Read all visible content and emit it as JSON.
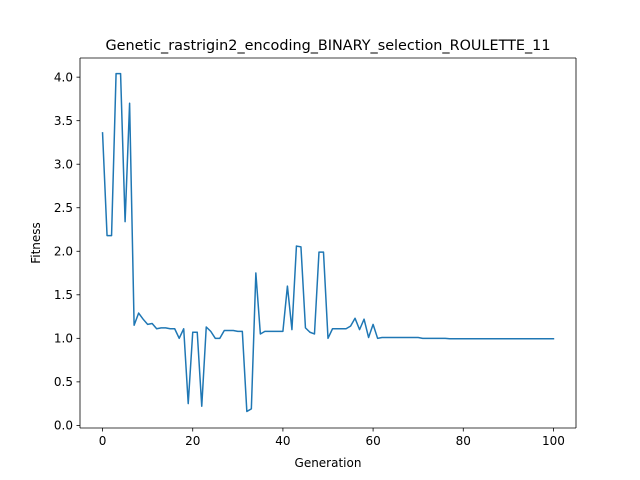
{
  "chart_data": {
    "type": "line",
    "title": "Genetic_rastrigin2_encoding_BINARY_selection_ROULETTE_11",
    "xlabel": "Generation",
    "ylabel": "Fitness",
    "xlim": [
      -5,
      105
    ],
    "ylim": [
      -0.03,
      4.22
    ],
    "xticks": [
      0,
      20,
      40,
      60,
      80,
      100
    ],
    "xtick_labels": [
      "0",
      "20",
      "40",
      "60",
      "80",
      "100"
    ],
    "yticks": [
      0.0,
      0.5,
      1.0,
      1.5,
      2.0,
      2.5,
      3.0,
      3.5,
      4.0
    ],
    "ytick_labels": [
      "0.0",
      "0.5",
      "1.0",
      "1.5",
      "2.0",
      "2.5",
      "3.0",
      "3.5",
      "4.0"
    ],
    "grid": false,
    "series": [
      {
        "color": "#1f77b4",
        "x": [
          0,
          1,
          2,
          3,
          4,
          5,
          6,
          7,
          8,
          9,
          10,
          11,
          12,
          13,
          14,
          15,
          16,
          17,
          18,
          19,
          20,
          21,
          22,
          23,
          24,
          25,
          26,
          27,
          28,
          29,
          30,
          31,
          32,
          33,
          34,
          35,
          36,
          37,
          38,
          39,
          40,
          41,
          42,
          43,
          44,
          45,
          46,
          47,
          48,
          49,
          50,
          51,
          52,
          53,
          54,
          55,
          56,
          57,
          58,
          59,
          60,
          61,
          62,
          63,
          64,
          65,
          66,
          67,
          68,
          69,
          70,
          71,
          72,
          73,
          74,
          75,
          76,
          77,
          78,
          79,
          80,
          81,
          82,
          83,
          84,
          85,
          86,
          87,
          88,
          89,
          90,
          91,
          92,
          93,
          94,
          95,
          96,
          97,
          98,
          99,
          100
        ],
        "values": [
          3.36,
          2.18,
          2.18,
          4.04,
          4.04,
          2.34,
          3.7,
          1.15,
          1.29,
          1.22,
          1.16,
          1.17,
          1.11,
          1.12,
          1.12,
          1.11,
          1.11,
          1.0,
          1.11,
          0.25,
          1.07,
          1.07,
          0.22,
          1.13,
          1.08,
          1.0,
          1.0,
          1.09,
          1.09,
          1.09,
          1.08,
          1.08,
          0.16,
          0.19,
          1.75,
          1.05,
          1.08,
          1.08,
          1.08,
          1.08,
          1.08,
          1.6,
          1.1,
          2.06,
          2.05,
          1.12,
          1.07,
          1.05,
          1.99,
          1.99,
          1.0,
          1.11,
          1.11,
          1.11,
          1.11,
          1.14,
          1.23,
          1.1,
          1.22,
          1.01,
          1.16,
          1.0,
          1.01,
          1.01,
          1.01,
          1.01,
          1.01,
          1.01,
          1.01,
          1.01,
          1.01,
          1.0,
          1.0,
          1.0,
          1.0,
          1.0,
          1.0,
          0.995,
          0.995,
          0.995,
          0.995,
          0.995,
          0.995,
          0.995,
          0.995,
          0.995,
          0.995,
          0.995,
          0.995,
          0.995,
          0.995,
          0.995,
          0.995,
          0.995,
          0.995,
          0.995,
          0.995,
          0.995,
          0.995,
          0.995,
          0.995
        ]
      }
    ]
  }
}
